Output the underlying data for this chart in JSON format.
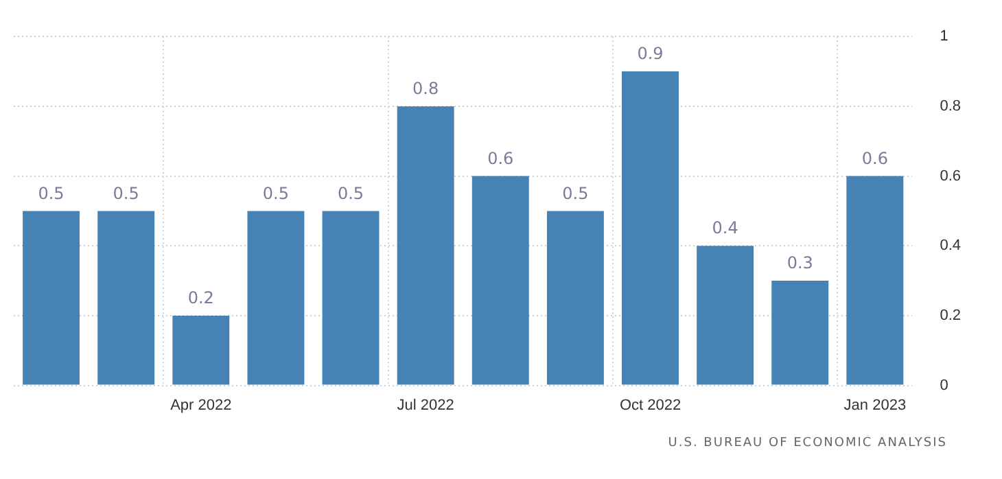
{
  "chart_data": {
    "type": "bar",
    "categories": [
      null,
      null,
      "Apr 2022",
      null,
      null,
      "Jul 2022",
      null,
      null,
      "Oct 2022",
      null,
      null,
      "Jan 2023"
    ],
    "values": [
      0.5,
      0.5,
      0.2,
      0.5,
      0.5,
      0.8,
      0.6,
      0.5,
      0.9,
      0.4,
      0.3,
      0.6
    ],
    "color": "#4682b4",
    "ylim": [
      0,
      1
    ],
    "yticks": [
      0,
      0.2,
      0.4,
      0.6,
      0.8,
      1
    ],
    "grid": true,
    "data_labels": true,
    "legend": false,
    "annotations": [
      "U.S. BUREAU OF ECONOMIC ANALYSIS"
    ]
  }
}
